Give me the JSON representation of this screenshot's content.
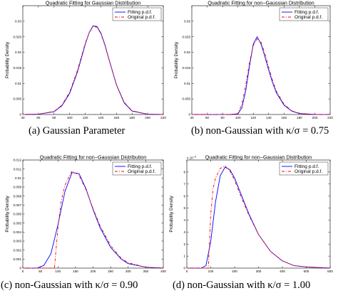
{
  "chart_data": [
    {
      "type": "line",
      "title": "Quadratic Fitting for Gaussian Distribution",
      "ylabel": "Probability Density",
      "xlim": [
        40,
        220
      ],
      "xticks": [
        40,
        60,
        80,
        100,
        120,
        140,
        160,
        180,
        200,
        220
      ],
      "ylim": [
        0,
        0.035
      ],
      "yticks": [
        0,
        0.005,
        0.01,
        0.015,
        0.02,
        0.025,
        0.03
      ],
      "ytick_labels": [
        "0",
        "0.005",
        "0.01",
        "0.015",
        "0.02",
        "0.025",
        "0.03"
      ],
      "legend": [
        "Fitting p.d.f.",
        "Original p.d.f."
      ],
      "legend_position": "top-right",
      "series": [
        {
          "name": "Fitting p.d.f.",
          "style": "solid",
          "color": "#0000ff",
          "x": [
            40,
            60,
            80,
            90,
            100,
            110,
            115,
            120,
            125,
            130,
            135,
            140,
            145,
            150,
            160,
            170,
            180,
            200,
            220
          ],
          "y": [
            0,
            0.0001,
            0.0009,
            0.0028,
            0.0068,
            0.0137,
            0.0181,
            0.0226,
            0.0263,
            0.0285,
            0.0283,
            0.0262,
            0.0226,
            0.0181,
            0.0095,
            0.0037,
            0.0011,
            0.0001,
            0
          ]
        },
        {
          "name": "Original p.d.f.",
          "style": "dash-dot",
          "color": "#ff0000",
          "x": [
            40,
            60,
            80,
            90,
            100,
            110,
            115,
            120,
            125,
            130,
            135,
            140,
            145,
            150,
            160,
            170,
            180,
            200,
            220
          ],
          "y": [
            0,
            0.0001,
            0.001,
            0.003,
            0.0072,
            0.0142,
            0.0186,
            0.0229,
            0.0263,
            0.0283,
            0.0281,
            0.026,
            0.0224,
            0.018,
            0.0096,
            0.0039,
            0.0012,
            0.0001,
            0
          ]
        }
      ]
    },
    {
      "type": "line",
      "title": "Quadratic Fitting for non−Gaussian Distribution",
      "ylabel": "Probability Density",
      "xlim": [
        40,
        220
      ],
      "xticks": [
        40,
        60,
        80,
        100,
        120,
        140,
        160,
        180,
        200,
        220
      ],
      "ylim": [
        0,
        0.035
      ],
      "yticks": [
        0,
        0.005,
        0.01,
        0.015,
        0.02,
        0.025,
        0.03
      ],
      "ytick_labels": [
        "0",
        "0.005",
        "0.01",
        "0.015",
        "0.02",
        "0.025",
        "0.03"
      ],
      "legend": [
        "Fitting p.d.f.",
        "Original p.d.f."
      ],
      "legend_position": "top-right",
      "series": [
        {
          "name": "Fitting p.d.f.",
          "style": "solid",
          "color": "#0000ff",
          "x": [
            40,
            90,
            100,
            105,
            110,
            115,
            120,
            125,
            130,
            135,
            140,
            145,
            150,
            160,
            170,
            180,
            200,
            220
          ],
          "y": [
            0,
            0,
            0.0002,
            0.0021,
            0.0074,
            0.0155,
            0.0227,
            0.025,
            0.0227,
            0.0187,
            0.0143,
            0.0103,
            0.007,
            0.003,
            0.0011,
            0.0003,
            0,
            0
          ]
        },
        {
          "name": "Original p.d.f.",
          "style": "dash-dot",
          "color": "#ff0000",
          "x": [
            40,
            90,
            100,
            105,
            110,
            115,
            120,
            125,
            130,
            135,
            140,
            145,
            150,
            160,
            170,
            180,
            200,
            220
          ],
          "y": [
            0,
            0,
            0.0003,
            0.0032,
            0.0092,
            0.0167,
            0.0222,
            0.0243,
            0.0233,
            0.0197,
            0.0152,
            0.011,
            0.0075,
            0.0033,
            0.0012,
            0.0004,
            0,
            0
          ]
        }
      ]
    },
    {
      "type": "line",
      "title": "Quadratic Fitting for non−Gaussian Distribution",
      "ylabel": "Probability Density",
      "xlim": [
        0,
        400
      ],
      "xticks": [
        0,
        50,
        100,
        150,
        200,
        250,
        300,
        350,
        400
      ],
      "ylim": [
        0,
        0.012
      ],
      "yticks": [
        0,
        0.001,
        0.002,
        0.003,
        0.004,
        0.005,
        0.006,
        0.007,
        0.008,
        0.009,
        0.01,
        0.011,
        0.012
      ],
      "ytick_labels": [
        "0",
        "0.001",
        "0.002",
        "0.003",
        "0.004",
        "0.005",
        "0.006",
        "0.007",
        "0.008",
        "0.009",
        "0.01",
        "0.011",
        "0.012"
      ],
      "legend": [
        "Fitting p.d.f.",
        "Original p.d.f."
      ],
      "legend_position": "top-right",
      "series": [
        {
          "name": "Fitting p.d.f.",
          "style": "solid",
          "color": "#0000ff",
          "x": [
            0,
            40,
            60,
            80,
            100,
            120,
            140,
            160,
            180,
            200,
            220,
            250,
            280,
            300,
            350,
            400
          ],
          "y": [
            0,
            0,
            0.0003,
            0.0016,
            0.0048,
            0.0085,
            0.0106,
            0.0105,
            0.0088,
            0.0065,
            0.0045,
            0.0023,
            0.001,
            0.0005,
            0.0001,
            0
          ]
        },
        {
          "name": "Original p.d.f.",
          "style": "dash-dot",
          "color": "#ff0000",
          "x": [
            0,
            80,
            90,
            100,
            110,
            120,
            140,
            160,
            180,
            200,
            220,
            250,
            280,
            300,
            350,
            400
          ],
          "y": [
            0,
            0,
            0,
            0.0045,
            0.0076,
            0.0092,
            0.0108,
            0.0103,
            0.0087,
            0.0066,
            0.0047,
            0.0025,
            0.0011,
            0.0006,
            0.0001,
            0
          ]
        }
      ]
    },
    {
      "type": "line",
      "title": "Quadratic Fitting for non−Gaussian Distribution",
      "ylabel": "Probability Density",
      "y_exponent_label": "x 10",
      "y_exponent_power": "−3",
      "xlim": [
        0,
        600
      ],
      "xticks": [
        0,
        100,
        200,
        300,
        400,
        500,
        600
      ],
      "ylim": [
        0,
        0.009
      ],
      "yticks": [
        0,
        0.001,
        0.002,
        0.003,
        0.004,
        0.005,
        0.006,
        0.007,
        0.008
      ],
      "ytick_labels": [
        "0",
        "1",
        "2",
        "3",
        "4",
        "5",
        "6",
        "7",
        "8"
      ],
      "legend": [
        "Fitting p.d.f.",
        "Original p.d.f."
      ],
      "legend_position": "top-right",
      "series": [
        {
          "name": "Fitting p.d.f.",
          "style": "solid",
          "color": "#0000ff",
          "x": [
            0,
            60,
            80,
            100,
            120,
            140,
            160,
            180,
            200,
            230,
            260,
            300,
            350,
            400,
            450,
            500,
            600
          ],
          "y": [
            0,
            0,
            0.0002,
            0.0022,
            0.0055,
            0.0077,
            0.0084,
            0.0082,
            0.0075,
            0.006,
            0.0045,
            0.0028,
            0.0014,
            0.0006,
            0.0002,
            0.0001,
            0
          ]
        },
        {
          "name": "Original p.d.f.",
          "style": "dash-dot",
          "color": "#ff0000",
          "x": [
            0,
            80,
            90,
            100,
            110,
            120,
            140,
            160,
            180,
            200,
            230,
            260,
            300,
            350,
            400,
            450,
            500,
            600
          ],
          "y": [
            0,
            0,
            0,
            0.0045,
            0.0066,
            0.0075,
            0.0083,
            0.0085,
            0.0081,
            0.0073,
            0.0058,
            0.0044,
            0.0028,
            0.0014,
            0.0006,
            0.0002,
            0.0001,
            0
          ]
        }
      ]
    }
  ],
  "captions": [
    "(a) Gaussian Parameter",
    "(b) non-Gaussian with κ/σ = 0.75",
    "(c) non-Gaussian with κ/σ = 0.90",
    "(d) non-Gaussian with κ/σ = 1.00"
  ]
}
